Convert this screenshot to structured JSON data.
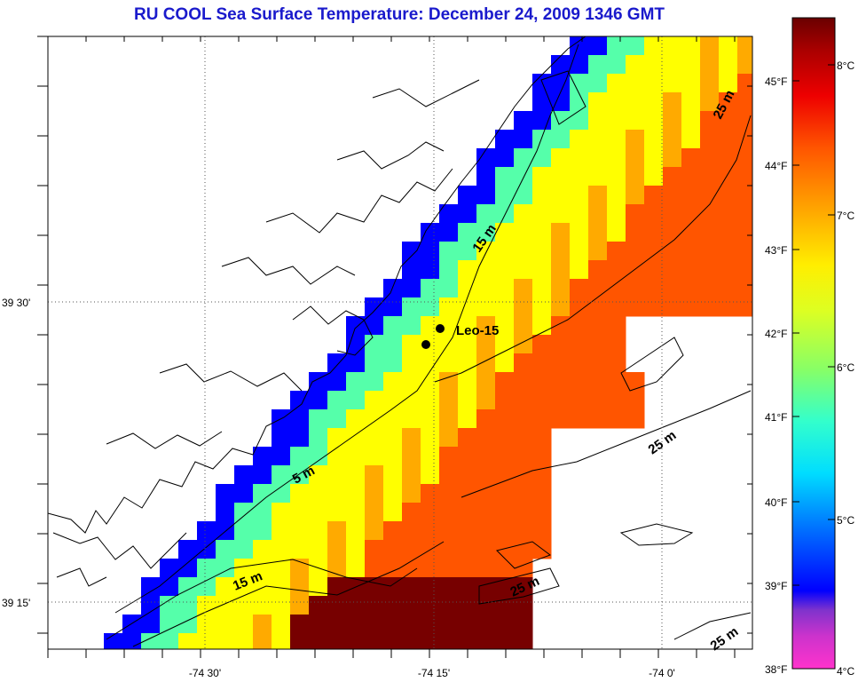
{
  "title": "RU COOL  Sea Surface Temperature:  December 24, 2009 1346 GMT",
  "axes": {
    "x_ticks": [
      "-74 30'",
      "-74 15'",
      "-74 0'"
    ],
    "y_ticks": [
      "39 30'",
      "39 15'"
    ]
  },
  "stations": [
    {
      "name": "Leo-15"
    }
  ],
  "contour_labels": [
    "5 m",
    "15 m",
    "15 m",
    "25 m",
    "25 m",
    "25 m",
    "25 m"
  ],
  "colorbar": {
    "fahrenheit_ticks": [
      "45°F",
      "44°F",
      "43°F",
      "42°F",
      "41°F",
      "40°F",
      "39°F",
      "38°F"
    ],
    "celsius_ticks": [
      "8°C",
      "7°C",
      "6°C",
      "5°C",
      "4°C"
    ],
    "colors": [
      "#ff33cc",
      "#7f33cc",
      "#0000ff",
      "#0055ff",
      "#00aaff",
      "#00ffff",
      "#55ffaa",
      "#aaff55",
      "#ffff00",
      "#ffaa00",
      "#ff5500",
      "#ff0000",
      "#aa0000",
      "#770000"
    ]
  }
}
